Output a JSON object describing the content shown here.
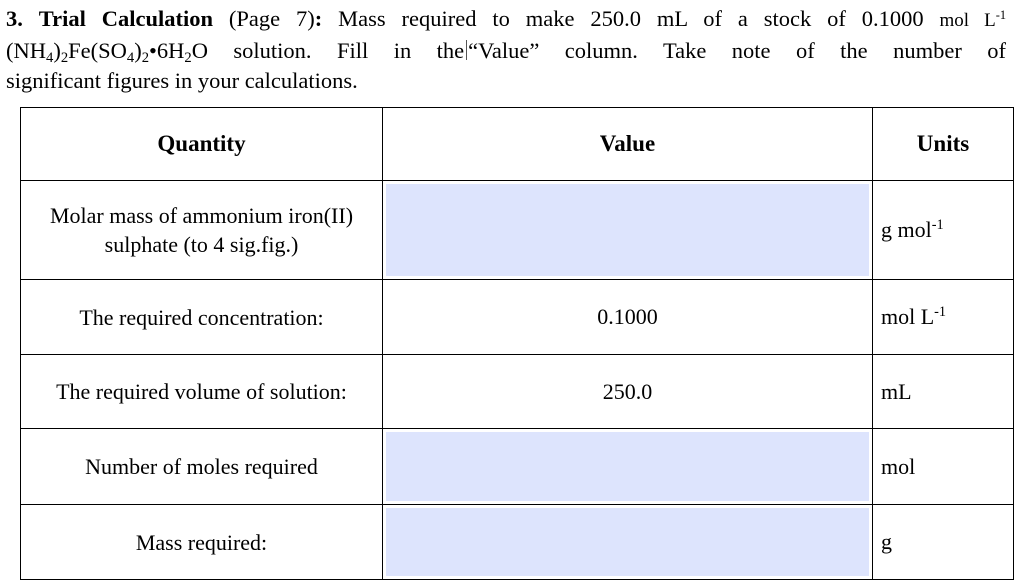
{
  "heading": {
    "number": "3.",
    "title": "Trial Calculation",
    "page_ref": "(Page 7)",
    "colon": ":",
    "text1": "Mass required to make 250.0 mL of a stock of 0.1000",
    "unit_mol": "mol L",
    "unit_exp": "-1",
    "formula_a": "(NH",
    "sub4a": "4",
    "formula_b": ")",
    "sub2a": "2",
    "formula_c": "Fe(SO",
    "sub4b": "4",
    "formula_d": ")",
    "sub2b": "2",
    "formula_e": "•6H",
    "sub2c": "2",
    "formula_f": "O solution. Fill in the",
    "text2": "“Value” column. Take note of the number of",
    "text3": "significant figures in your calculations."
  },
  "table": {
    "headers": {
      "quantity": "Quantity",
      "value": "Value",
      "units": "Units"
    },
    "rows": [
      {
        "quantity_line1": "Molar mass of ammonium iron(II)",
        "quantity_line2": "sulphate (to 4 sig.fig.)",
        "value": "",
        "unit_base": "g mol",
        "unit_exp": "-1"
      },
      {
        "quantity": "The required concentration:",
        "value": "0.1000",
        "unit_base": "mol L",
        "unit_exp": "-1"
      },
      {
        "quantity": "The required volume of solution:",
        "value": "250.0",
        "unit_base": "mL"
      },
      {
        "quantity": "Number of moles required",
        "value": "",
        "unit_base": "mol"
      },
      {
        "quantity": "Mass required:",
        "value": "",
        "unit_base": "g"
      }
    ]
  },
  "colors": {
    "input_fill": "#dde4fd"
  }
}
